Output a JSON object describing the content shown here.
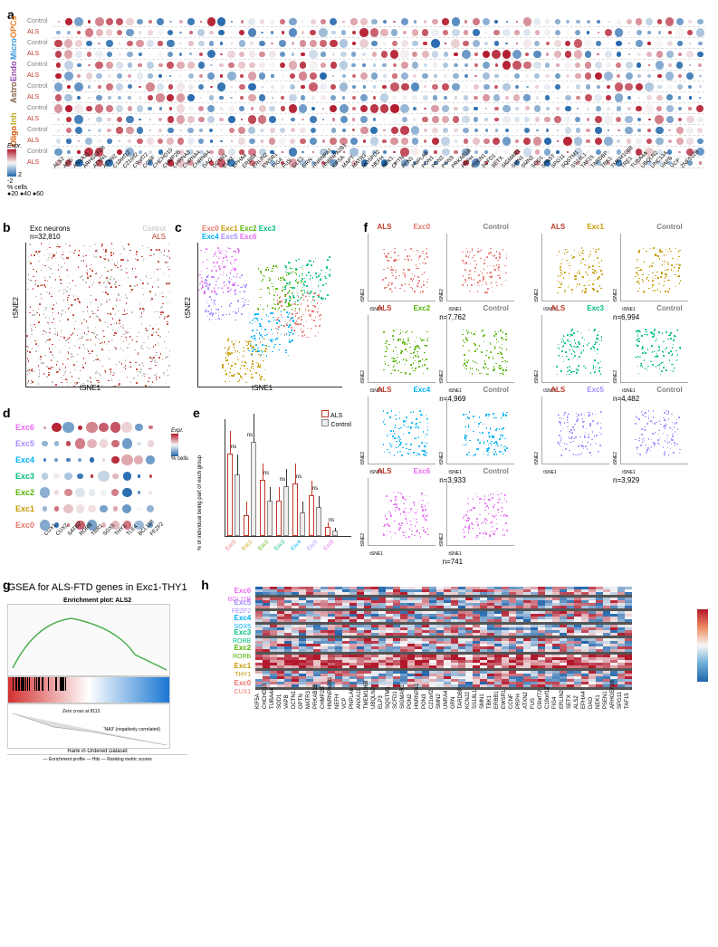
{
  "panel_a": {
    "label": "a",
    "cell_types": [
      {
        "name": "OPCs",
        "color": "#e67e22"
      },
      {
        "name": "Micro",
        "color": "#3498db"
      },
      {
        "name": "Endo",
        "color": "#8e44ad"
      },
      {
        "name": "Astro",
        "color": "#7f5b3f"
      },
      {
        "name": "Inh",
        "color": "#b8a516"
      },
      {
        "name": "Oligo",
        "color": "#d35400"
      },
      {
        "name": "Exc",
        "color": "#27ae60"
      }
    ],
    "conditions": [
      "Control",
      "ALS"
    ],
    "condition_colors": {
      "Control": "#808080",
      "ALS": "#c0392b"
    },
    "genes": [
      "ALS2",
      "ANG",
      "ANXA11",
      "ARHGEF28",
      "ATXN1",
      "ATXN2",
      "C19orf12",
      "C21orf2",
      "C9orf72",
      "CCNF",
      "CHCHD10",
      "CHMP2B",
      "CHRNA3",
      "CHRNA4",
      "CHRNB4",
      "DAO",
      "DCTN1",
      "ELP3",
      "EPHA4",
      "ERBB4",
      "ERLIN2",
      "EWSR1",
      "FIG4",
      "FUS",
      "GLE1",
      "GRN",
      "HNRNPA1",
      "HNRNPA2B1",
      "KIF5A",
      "MAPT",
      "MATR3",
      "MOSPD2",
      "NEFH",
      "NEK1",
      "OPTN",
      "PFN1",
      "PNPLA6",
      "PON1",
      "PON2",
      "PON3",
      "PRKAB1B",
      "PRPH",
      "PSEN1",
      "SCFD1",
      "SETX",
      "SIGMAR1",
      "SMN1",
      "SMN2",
      "SOD1",
      "SPAST",
      "SPG11",
      "SQSTM1",
      "SS18L1",
      "TAF15",
      "TARDBP",
      "TBK1",
      "TMEM106B",
      "TRE1",
      "TUBA4A",
      "UBQLN2",
      "UNC13A",
      "VAPB",
      "VCP",
      "ZNF512B"
    ],
    "expr_scale": {
      "min": -2,
      "max": 2,
      "colors": [
        "#2166ac",
        "#f7f7f7",
        "#b2182b"
      ]
    },
    "size_scale": {
      "values": [
        20,
        40,
        60
      ],
      "label": "% cells"
    },
    "expr_label": "Expr."
  },
  "panel_b": {
    "label": "b",
    "title": "Exc neurons",
    "n": "n=32,810",
    "conditions": [
      "Control",
      "ALS"
    ],
    "condition_colors": {
      "Control": "#bbbbbb",
      "ALS": "#c0392b"
    },
    "xlabel": "tSNE1",
    "ylabel": "tSNE2",
    "xlim": [
      -50,
      50
    ],
    "ylim": [
      -40,
      40
    ]
  },
  "panel_c": {
    "label": "c",
    "clusters": [
      "Exc0",
      "Exc1",
      "Exc2",
      "Exc3",
      "Exc4",
      "Exc5",
      "Exc6"
    ],
    "cluster_colors": {
      "Exc0": "#e8766d",
      "Exc1": "#c49a00",
      "Exc2": "#53b400",
      "Exc3": "#00bf7d",
      "Exc4": "#00b0f6",
      "Exc5": "#a58aff",
      "Exc6": "#e76bf3"
    },
    "xlabel": "tSNE1",
    "ylabel": "tSNE2"
  },
  "panel_d": {
    "label": "d",
    "clusters": [
      "Exc6",
      "Exc5",
      "Exc4",
      "Exc3",
      "Exc2",
      "Exc1",
      "Exc0"
    ],
    "cluster_colors": {
      "Exc0": "#e8766d",
      "Exc1": "#c49a00",
      "Exc2": "#53b400",
      "Exc3": "#00bf7d",
      "Exc4": "#00b0f6",
      "Exc5": "#a58aff",
      "Exc6": "#e76bf3"
    },
    "genes": [
      "CUX1",
      "CUX2",
      "SATB2",
      "RORB",
      "TBR1",
      "SOX5",
      "THY1",
      "TLE4",
      "BCL11B",
      "FEZF2"
    ],
    "expr_label": "Expr.",
    "size_label": "% cells",
    "size_values": [
      20,
      40,
      60,
      80
    ]
  },
  "panel_e": {
    "label": "e",
    "ylabel": "% of individual being part of each group",
    "clusters": [
      "Exc0",
      "Exc1",
      "Exc2",
      "Exc3",
      "Exc4",
      "Exc5",
      "Exc6"
    ],
    "cluster_colors": {
      "Exc0": "#e8766d",
      "Exc1": "#c49a00",
      "Exc2": "#53b400",
      "Exc3": "#00bf7d",
      "Exc4": "#00b0f6",
      "Exc5": "#a58aff",
      "Exc6": "#e76bf3"
    },
    "conditions": [
      "ALS",
      "Control"
    ],
    "als_color": "#c0392b",
    "control_color": "#cccccc",
    "values": {
      "Exc0": {
        "als": 28,
        "als_err": 8,
        "control": 21,
        "control_err": 7
      },
      "Exc1": {
        "als": 7,
        "als_err": 5,
        "control": 32,
        "control_err": 10
      },
      "Exc2": {
        "als": 19,
        "als_err": 6,
        "control": 12,
        "control_err": 5
      },
      "Exc3": {
        "als": 12,
        "als_err": 5,
        "control": 17,
        "control_err": 6
      },
      "Exc4": {
        "als": 18,
        "als_err": 7,
        "control": 8,
        "control_err": 4
      },
      "Exc5": {
        "als": 14,
        "als_err": 5,
        "control": 10,
        "control_err": 4
      },
      "Exc6": {
        "als": 3,
        "als_err": 2,
        "control": 2,
        "control_err": 1
      }
    },
    "sig_labels": [
      "ns",
      "ns",
      "ns",
      "ns",
      "ns",
      "ns",
      "ns"
    ],
    "ylim": [
      0,
      40
    ]
  },
  "panel_f": {
    "label": "f",
    "clusters": [
      {
        "name": "Exc0",
        "color": "#e8766d",
        "n": "n=7,762"
      },
      {
        "name": "Exc1",
        "color": "#c49a00",
        "n": "n=6,994"
      },
      {
        "name": "Exc2",
        "color": "#53b400",
        "n": "n=4,969"
      },
      {
        "name": "Exc3",
        "color": "#00bf7d",
        "n": "n=4,482"
      },
      {
        "name": "Exc4",
        "color": "#00b0f6",
        "n": "n=3,933"
      },
      {
        "name": "Exc5",
        "color": "#a58aff",
        "n": "n=3,929"
      },
      {
        "name": "Exc6",
        "color": "#e76bf3",
        "n": "n=741"
      }
    ],
    "conditions": [
      "ALS",
      "Control"
    ],
    "als_label_color": "#c0392b",
    "control_label_color": "#808080",
    "xlabel": "tSNE1",
    "ylabel": "tSNE2"
  },
  "panel_g": {
    "label": "g",
    "title": "GSEA for ALS-FTD genes in Exc1-THY1",
    "subtitle": "Enrichment plot: ALS2",
    "ylabel": "Enrichment score (ES)",
    "bottom_ylabel": "Ranked list metric (Signal2Noise)",
    "xlabel": "Rank in Ordered Dataset",
    "legend": [
      "Enrichment profile",
      "Hits",
      "Ranking metric scores"
    ],
    "xmax": 25000,
    "es_max": 0.5,
    "line_color": "#4caf50",
    "neg_label": "'NA3' (negatively correlated)",
    "zero_label": "Zero cross at 8113"
  },
  "panel_h": {
    "label": "h",
    "sections": [
      {
        "name": "Exc6",
        "marker": "BCL11B",
        "color": "#e76bf3",
        "rows": 3
      },
      {
        "name": "Exc5",
        "marker": "FEZF2",
        "color": "#a58aff",
        "rows": 4
      },
      {
        "name": "Exc4",
        "marker": "SOX5",
        "color": "#00b0f6",
        "rows": 4
      },
      {
        "name": "Exc3",
        "marker": "RORB",
        "color": "#00bf7d",
        "rows": 4
      },
      {
        "name": "Exc2",
        "marker": "RORB",
        "color": "#53b400",
        "rows": 5
      },
      {
        "name": "Exc1",
        "marker": "THY1",
        "color": "#c49a00",
        "rows": 5
      },
      {
        "name": "Exc0",
        "marker": "CUX1",
        "color": "#e8766d",
        "rows": 6
      }
    ],
    "genes": [
      "KIF5A",
      "CHCHD10",
      "TUBA4A",
      "SOD1",
      "VAPB",
      "DCTN1",
      "OPTN",
      "MATR3",
      "PRKAB1B",
      "CHMP2B",
      "HNRNPA2B1",
      "NEFH",
      "VCP",
      "PNPLA6",
      "ANXA11",
      "TMEM106B",
      "UBQLN2",
      "ELP3",
      "SQSTM1",
      "SCFD1",
      "SIGMAR1",
      "PON2",
      "HNRNPA1",
      "PON3",
      "C21orf2",
      "SMN2",
      "UNRA4",
      "GRN",
      "TARDBP",
      "KCNJ2",
      "SS18L1",
      "SMN1",
      "TBK1",
      "ERBB1",
      "EWSR1",
      "CCNF",
      "PRPH",
      "ATXN2",
      "FUS",
      "C9orf72",
      "C19orf12",
      "FIG4",
      "ERLIN2",
      "SETX",
      "ALS2",
      "EPHA4",
      "DAO",
      "NEK1",
      "PSEN1",
      "ARHGEF28",
      "SPG11",
      "TAF15"
    ],
    "scale": {
      "min": -2,
      "max": 2,
      "colors": [
        "#2166ac",
        "#6baed6",
        "#f7f7f7",
        "#ef8a62",
        "#b2182b"
      ]
    }
  }
}
